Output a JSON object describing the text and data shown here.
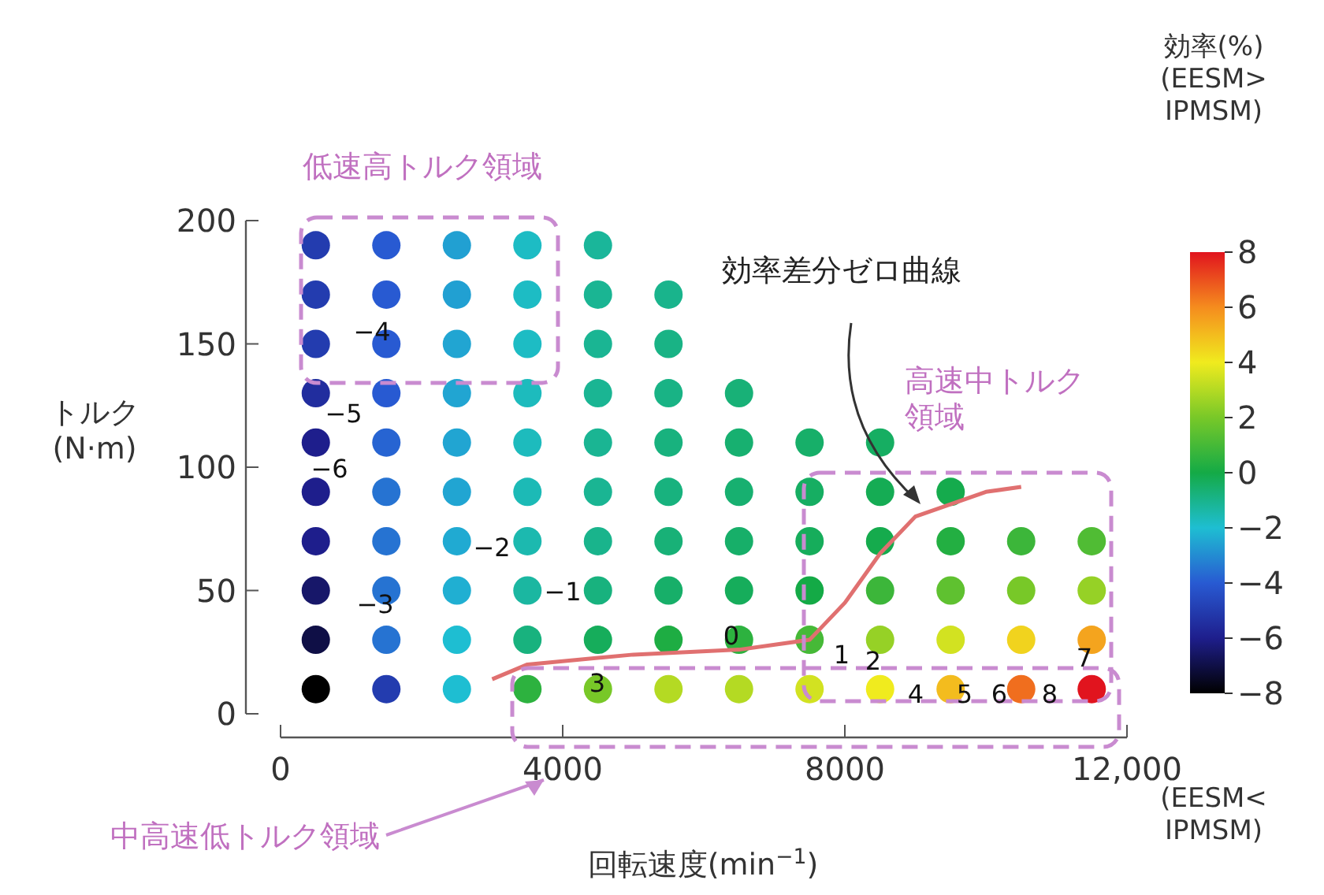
{
  "chart_data": {
    "type": "scatter",
    "series": [
      {
        "type": "scatter",
        "marker": "circle",
        "x": [
          500,
          1500,
          2500,
          3500,
          4500,
          500,
          1500,
          2500,
          3500,
          4500,
          5500,
          500,
          1500,
          2500,
          3500,
          4500,
          5500,
          500,
          1500,
          2500,
          3500,
          4500,
          5500,
          6500,
          500,
          1500,
          2500,
          3500,
          4500,
          5500,
          6500,
          7500,
          8500,
          500,
          1500,
          2500,
          3500,
          4500,
          5500,
          6500,
          7500,
          8500,
          9500,
          500,
          1500,
          2500,
          3500,
          4500,
          5500,
          6500,
          7500,
          8500,
          9500,
          10500,
          11500,
          500,
          1500,
          2500,
          3500,
          4500,
          5500,
          6500,
          7500,
          8500,
          9500,
          10500,
          11500,
          500,
          1500,
          2500,
          3500,
          4500,
          5500,
          6500,
          7500,
          8500,
          9500,
          10500,
          11500,
          500,
          1500,
          2500,
          3500,
          4500,
          5500,
          6500,
          7500,
          8500,
          9500,
          10500,
          11500
        ],
        "values": [
          190,
          190,
          190,
          190,
          190,
          170,
          170,
          170,
          170,
          170,
          170,
          150,
          150,
          150,
          150,
          150,
          150,
          130,
          130,
          130,
          130,
          130,
          130,
          130,
          110,
          110,
          110,
          110,
          110,
          110,
          110,
          110,
          110,
          90,
          90,
          90,
          90,
          90,
          90,
          90,
          90,
          90,
          90,
          70,
          70,
          70,
          70,
          70,
          70,
          70,
          70,
          70,
          70,
          70,
          70,
          50,
          50,
          50,
          50,
          50,
          50,
          50,
          50,
          50,
          50,
          50,
          50,
          30,
          30,
          30,
          30,
          30,
          30,
          30,
          30,
          30,
          30,
          30,
          30,
          10,
          10,
          10,
          10,
          10,
          10,
          10,
          10,
          10,
          10,
          10,
          10
        ],
        "colors": [
          "#233caf",
          "#285ad2",
          "#21a0d2",
          "#1dbcc4",
          "#1ab69a",
          "#233caf",
          "#285ad2",
          "#21a0d2",
          "#1dbcc4",
          "#1ab593",
          "#19b48c",
          "#233caf",
          "#285ad2",
          "#21a5d2",
          "#1dbcc4",
          "#1ab593",
          "#19b385",
          "#212d9e",
          "#285ad2",
          "#21a5d2",
          "#1dbbbd",
          "#1ab593",
          "#19b385",
          "#18b177",
          "#1e1e8c",
          "#2764d2",
          "#21a5d2",
          "#1dbbbd",
          "#1ab593",
          "#18b27e",
          "#17b070",
          "#17af69",
          "#16ae62",
          "#1e1e8c",
          "#2673d2",
          "#21a5d2",
          "#1cbab6",
          "#1ab593",
          "#18b27e",
          "#17b070",
          "#16ae62",
          "#15ac54",
          "#15ab4d",
          "#1e1e8c",
          "#2673d2",
          "#20aad2",
          "#1cb9af",
          "#19b48c",
          "#18b177",
          "#17af69",
          "#16ad5b",
          "#15ab4d",
          "#23af42",
          "#3cb63a",
          "#50bc34",
          "#171769",
          "#2673d2",
          "#20afd2",
          "#1bb7a1",
          "#18b27e",
          "#17af69",
          "#16ad5b",
          "#14aa46",
          "#3cb63a",
          "#5fc130",
          "#78c828",
          "#96d126",
          "#0f0f46",
          "#2673d2",
          "#1ebed2",
          "#18b27e",
          "#16ad5b",
          "#1ead43",
          "#2db23f",
          "#46b937",
          "#96d126",
          "#d2e221",
          "#f1d31e",
          "#f4a41e",
          "#000000",
          "#233caf",
          "#1ebed2",
          "#2db23f",
          "#78c828",
          "#b4da23",
          "#b4da23",
          "#d2e221",
          "#f0eb1e",
          "#f3bc1e",
          "#f06e1e",
          "#e1141e"
        ]
      },
      {
        "type": "line",
        "color": "#e07070",
        "x": [
          3000,
          3500,
          5000,
          6500,
          7500,
          8000,
          8500,
          9000,
          10000,
          10500
        ],
        "values": [
          14,
          20,
          24,
          26,
          30,
          45,
          65,
          80,
          90,
          92
        ]
      }
    ],
    "xlim": [
      0,
      12000
    ],
    "ylim": [
      0,
      200
    ],
    "xticks": [
      0,
      4000,
      8000,
      {
        "value": 12000,
        "label": "12,000"
      }
    ],
    "yticks": [
      0,
      50,
      100,
      150,
      200
    ],
    "clim": [
      -8,
      8
    ],
    "cticks": [
      -8,
      -6,
      -4,
      -2,
      0,
      2,
      4,
      6,
      8
    ],
    "xlabel": "回転速度(min$^{−1}$)",
    "ylabel": "トルク\n(N·m)",
    "clabel": "効率(%)\n(EESM>\nIPMSM)",
    "annotations": [
      "低速高トルク領域",
      "高速中トルク領域",
      "中高速低トルク領域",
      "効率差分ゼロ曲線",
      "(EESM<\nIPMSM)",
      "−6",
      "−5",
      "−4",
      "−3",
      "−2",
      "−1",
      "0",
      "1",
      "2",
      "3",
      "4",
      "5",
      "6",
      "8",
      "7"
    ]
  }
}
